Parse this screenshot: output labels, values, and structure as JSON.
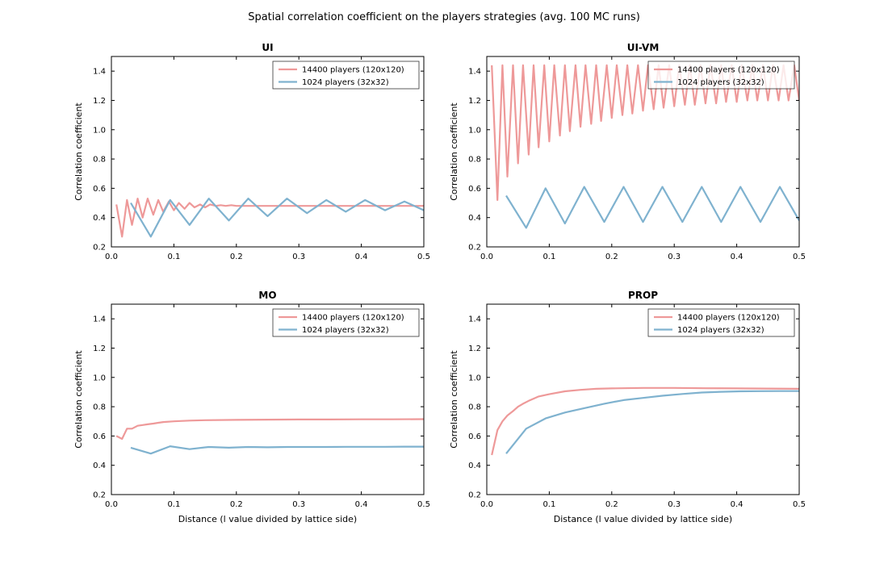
{
  "figure": {
    "title": "Spatial correlation coefficient on the players strategies (avg. 100 MC runs)"
  },
  "colors": {
    "large": "#ee9999",
    "small": "#7fb2cf"
  },
  "chart_data": [
    {
      "type": "line",
      "title": "UI",
      "xlabel": "",
      "ylabel": "Correlation coefficient",
      "xlim": [
        0.0,
        0.5
      ],
      "ylim": [
        0.2,
        1.5
      ],
      "xticks": [
        "0.0",
        "0.1",
        "0.2",
        "0.3",
        "0.4",
        "0.5"
      ],
      "yticks": [
        "0.2",
        "0.4",
        "0.6",
        "0.8",
        "1.0",
        "1.2",
        "1.4"
      ],
      "legend_position": "top-right",
      "series": [
        {
          "name": "14400 players (120x120)",
          "x": [
            0.008,
            0.017,
            0.025,
            0.033,
            0.042,
            0.05,
            0.058,
            0.067,
            0.075,
            0.083,
            0.092,
            0.1,
            0.108,
            0.117,
            0.125,
            0.133,
            0.142,
            0.15,
            0.158,
            0.167,
            0.175,
            0.183,
            0.192,
            0.2,
            0.25,
            0.3,
            0.35,
            0.4,
            0.45,
            0.5
          ],
          "y": [
            0.49,
            0.27,
            0.52,
            0.35,
            0.53,
            0.4,
            0.53,
            0.42,
            0.52,
            0.44,
            0.51,
            0.45,
            0.5,
            0.46,
            0.5,
            0.47,
            0.49,
            0.47,
            0.49,
            0.48,
            0.485,
            0.48,
            0.485,
            0.48,
            0.48,
            0.48,
            0.48,
            0.48,
            0.48,
            0.48
          ]
        },
        {
          "name": "1024 players (32x32)",
          "x": [
            0.031,
            0.063,
            0.094,
            0.125,
            0.156,
            0.188,
            0.219,
            0.25,
            0.281,
            0.313,
            0.344,
            0.375,
            0.406,
            0.438,
            0.469,
            0.5
          ],
          "y": [
            0.5,
            0.27,
            0.52,
            0.35,
            0.53,
            0.38,
            0.53,
            0.41,
            0.53,
            0.43,
            0.52,
            0.44,
            0.52,
            0.45,
            0.51,
            0.45
          ]
        }
      ]
    },
    {
      "type": "line",
      "title": "UI-VM",
      "xlabel": "",
      "ylabel": "Correlation coefficient",
      "xlim": [
        0.0,
        0.5
      ],
      "ylim": [
        0.2,
        1.5
      ],
      "xticks": [
        "0.0",
        "0.1",
        "0.2",
        "0.3",
        "0.4",
        "0.5"
      ],
      "yticks": [
        "0.2",
        "0.4",
        "0.6",
        "0.8",
        "1.0",
        "1.2",
        "1.4"
      ],
      "legend_position": "top-right",
      "series": [
        {
          "name": "14400 players (120x120)",
          "x": [
            0.008,
            0.017,
            0.025,
            0.033,
            0.042,
            0.05,
            0.058,
            0.067,
            0.075,
            0.083,
            0.092,
            0.1,
            0.108,
            0.117,
            0.125,
            0.133,
            0.142,
            0.15,
            0.158,
            0.167,
            0.175,
            0.183,
            0.192,
            0.2,
            0.208,
            0.217,
            0.225,
            0.233,
            0.242,
            0.25,
            0.258,
            0.267,
            0.275,
            0.283,
            0.292,
            0.3,
            0.308,
            0.317,
            0.325,
            0.333,
            0.342,
            0.35,
            0.358,
            0.367,
            0.375,
            0.383,
            0.392,
            0.4,
            0.408,
            0.417,
            0.425,
            0.433,
            0.442,
            0.45,
            0.458,
            0.467,
            0.475,
            0.483,
            0.492,
            0.5
          ],
          "y": [
            1.44,
            0.52,
            1.44,
            0.68,
            1.44,
            0.77,
            1.44,
            0.83,
            1.44,
            0.88,
            1.44,
            0.92,
            1.44,
            0.96,
            1.44,
            0.99,
            1.44,
            1.02,
            1.44,
            1.04,
            1.44,
            1.06,
            1.44,
            1.08,
            1.44,
            1.1,
            1.44,
            1.11,
            1.44,
            1.13,
            1.44,
            1.14,
            1.44,
            1.15,
            1.44,
            1.16,
            1.44,
            1.17,
            1.44,
            1.17,
            1.44,
            1.18,
            1.44,
            1.18,
            1.44,
            1.19,
            1.44,
            1.19,
            1.44,
            1.2,
            1.44,
            1.2,
            1.44,
            1.2,
            1.44,
            1.2,
            1.44,
            1.2,
            1.44,
            1.2
          ]
        },
        {
          "name": "1024 players (32x32)",
          "x": [
            0.031,
            0.063,
            0.094,
            0.125,
            0.156,
            0.188,
            0.219,
            0.25,
            0.281,
            0.313,
            0.344,
            0.375,
            0.406,
            0.438,
            0.469,
            0.5
          ],
          "y": [
            0.55,
            0.33,
            0.6,
            0.36,
            0.61,
            0.37,
            0.61,
            0.37,
            0.61,
            0.37,
            0.61,
            0.37,
            0.61,
            0.37,
            0.61,
            0.38
          ]
        }
      ]
    },
    {
      "type": "line",
      "title": "MO",
      "xlabel": "Distance (l value divided by lattice side)",
      "ylabel": "Correlation coefficient",
      "xlim": [
        0.0,
        0.5
      ],
      "ylim": [
        0.2,
        1.5
      ],
      "xticks": [
        "0.0",
        "0.1",
        "0.2",
        "0.3",
        "0.4",
        "0.5"
      ],
      "yticks": [
        "0.2",
        "0.4",
        "0.6",
        "0.8",
        "1.0",
        "1.2",
        "1.4"
      ],
      "legend_position": "top-right",
      "series": [
        {
          "name": "14400 players (120x120)",
          "x": [
            0.008,
            0.017,
            0.025,
            0.033,
            0.042,
            0.05,
            0.058,
            0.067,
            0.075,
            0.083,
            0.1,
            0.125,
            0.15,
            0.2,
            0.25,
            0.3,
            0.35,
            0.4,
            0.45,
            0.5
          ],
          "y": [
            0.6,
            0.58,
            0.65,
            0.65,
            0.67,
            0.675,
            0.68,
            0.685,
            0.69,
            0.695,
            0.7,
            0.705,
            0.708,
            0.71,
            0.712,
            0.713,
            0.713,
            0.714,
            0.714,
            0.715
          ]
        },
        {
          "name": "1024 players (32x32)",
          "x": [
            0.031,
            0.063,
            0.094,
            0.125,
            0.156,
            0.188,
            0.219,
            0.25,
            0.281,
            0.313,
            0.344,
            0.375,
            0.406,
            0.438,
            0.469,
            0.5
          ],
          "y": [
            0.52,
            0.48,
            0.53,
            0.51,
            0.525,
            0.52,
            0.525,
            0.523,
            0.525,
            0.525,
            0.525,
            0.526,
            0.526,
            0.526,
            0.527,
            0.527
          ]
        }
      ]
    },
    {
      "type": "line",
      "title": "PROP",
      "xlabel": "Distance (l value divided by lattice side)",
      "ylabel": "Correlation coefficient",
      "xlim": [
        0.0,
        0.5
      ],
      "ylim": [
        0.2,
        1.5
      ],
      "xticks": [
        "0.0",
        "0.1",
        "0.2",
        "0.3",
        "0.4",
        "0.5"
      ],
      "yticks": [
        "0.2",
        "0.4",
        "0.6",
        "0.8",
        "1.0",
        "1.2",
        "1.4"
      ],
      "legend_position": "top-right",
      "series": [
        {
          "name": "14400 players (120x120)",
          "x": [
            0.008,
            0.017,
            0.025,
            0.033,
            0.042,
            0.05,
            0.058,
            0.067,
            0.075,
            0.083,
            0.1,
            0.125,
            0.15,
            0.175,
            0.2,
            0.25,
            0.3,
            0.35,
            0.4,
            0.45,
            0.5
          ],
          "y": [
            0.47,
            0.64,
            0.7,
            0.74,
            0.77,
            0.8,
            0.82,
            0.84,
            0.855,
            0.87,
            0.885,
            0.905,
            0.915,
            0.922,
            0.925,
            0.928,
            0.928,
            0.926,
            0.925,
            0.924,
            0.922
          ]
        },
        {
          "name": "1024 players (32x32)",
          "x": [
            0.031,
            0.063,
            0.094,
            0.125,
            0.156,
            0.188,
            0.219,
            0.25,
            0.281,
            0.313,
            0.344,
            0.375,
            0.406,
            0.438,
            0.469,
            0.5
          ],
          "y": [
            0.48,
            0.65,
            0.72,
            0.76,
            0.79,
            0.82,
            0.845,
            0.86,
            0.875,
            0.887,
            0.897,
            0.902,
            0.905,
            0.906,
            0.907,
            0.907
          ]
        }
      ]
    }
  ]
}
